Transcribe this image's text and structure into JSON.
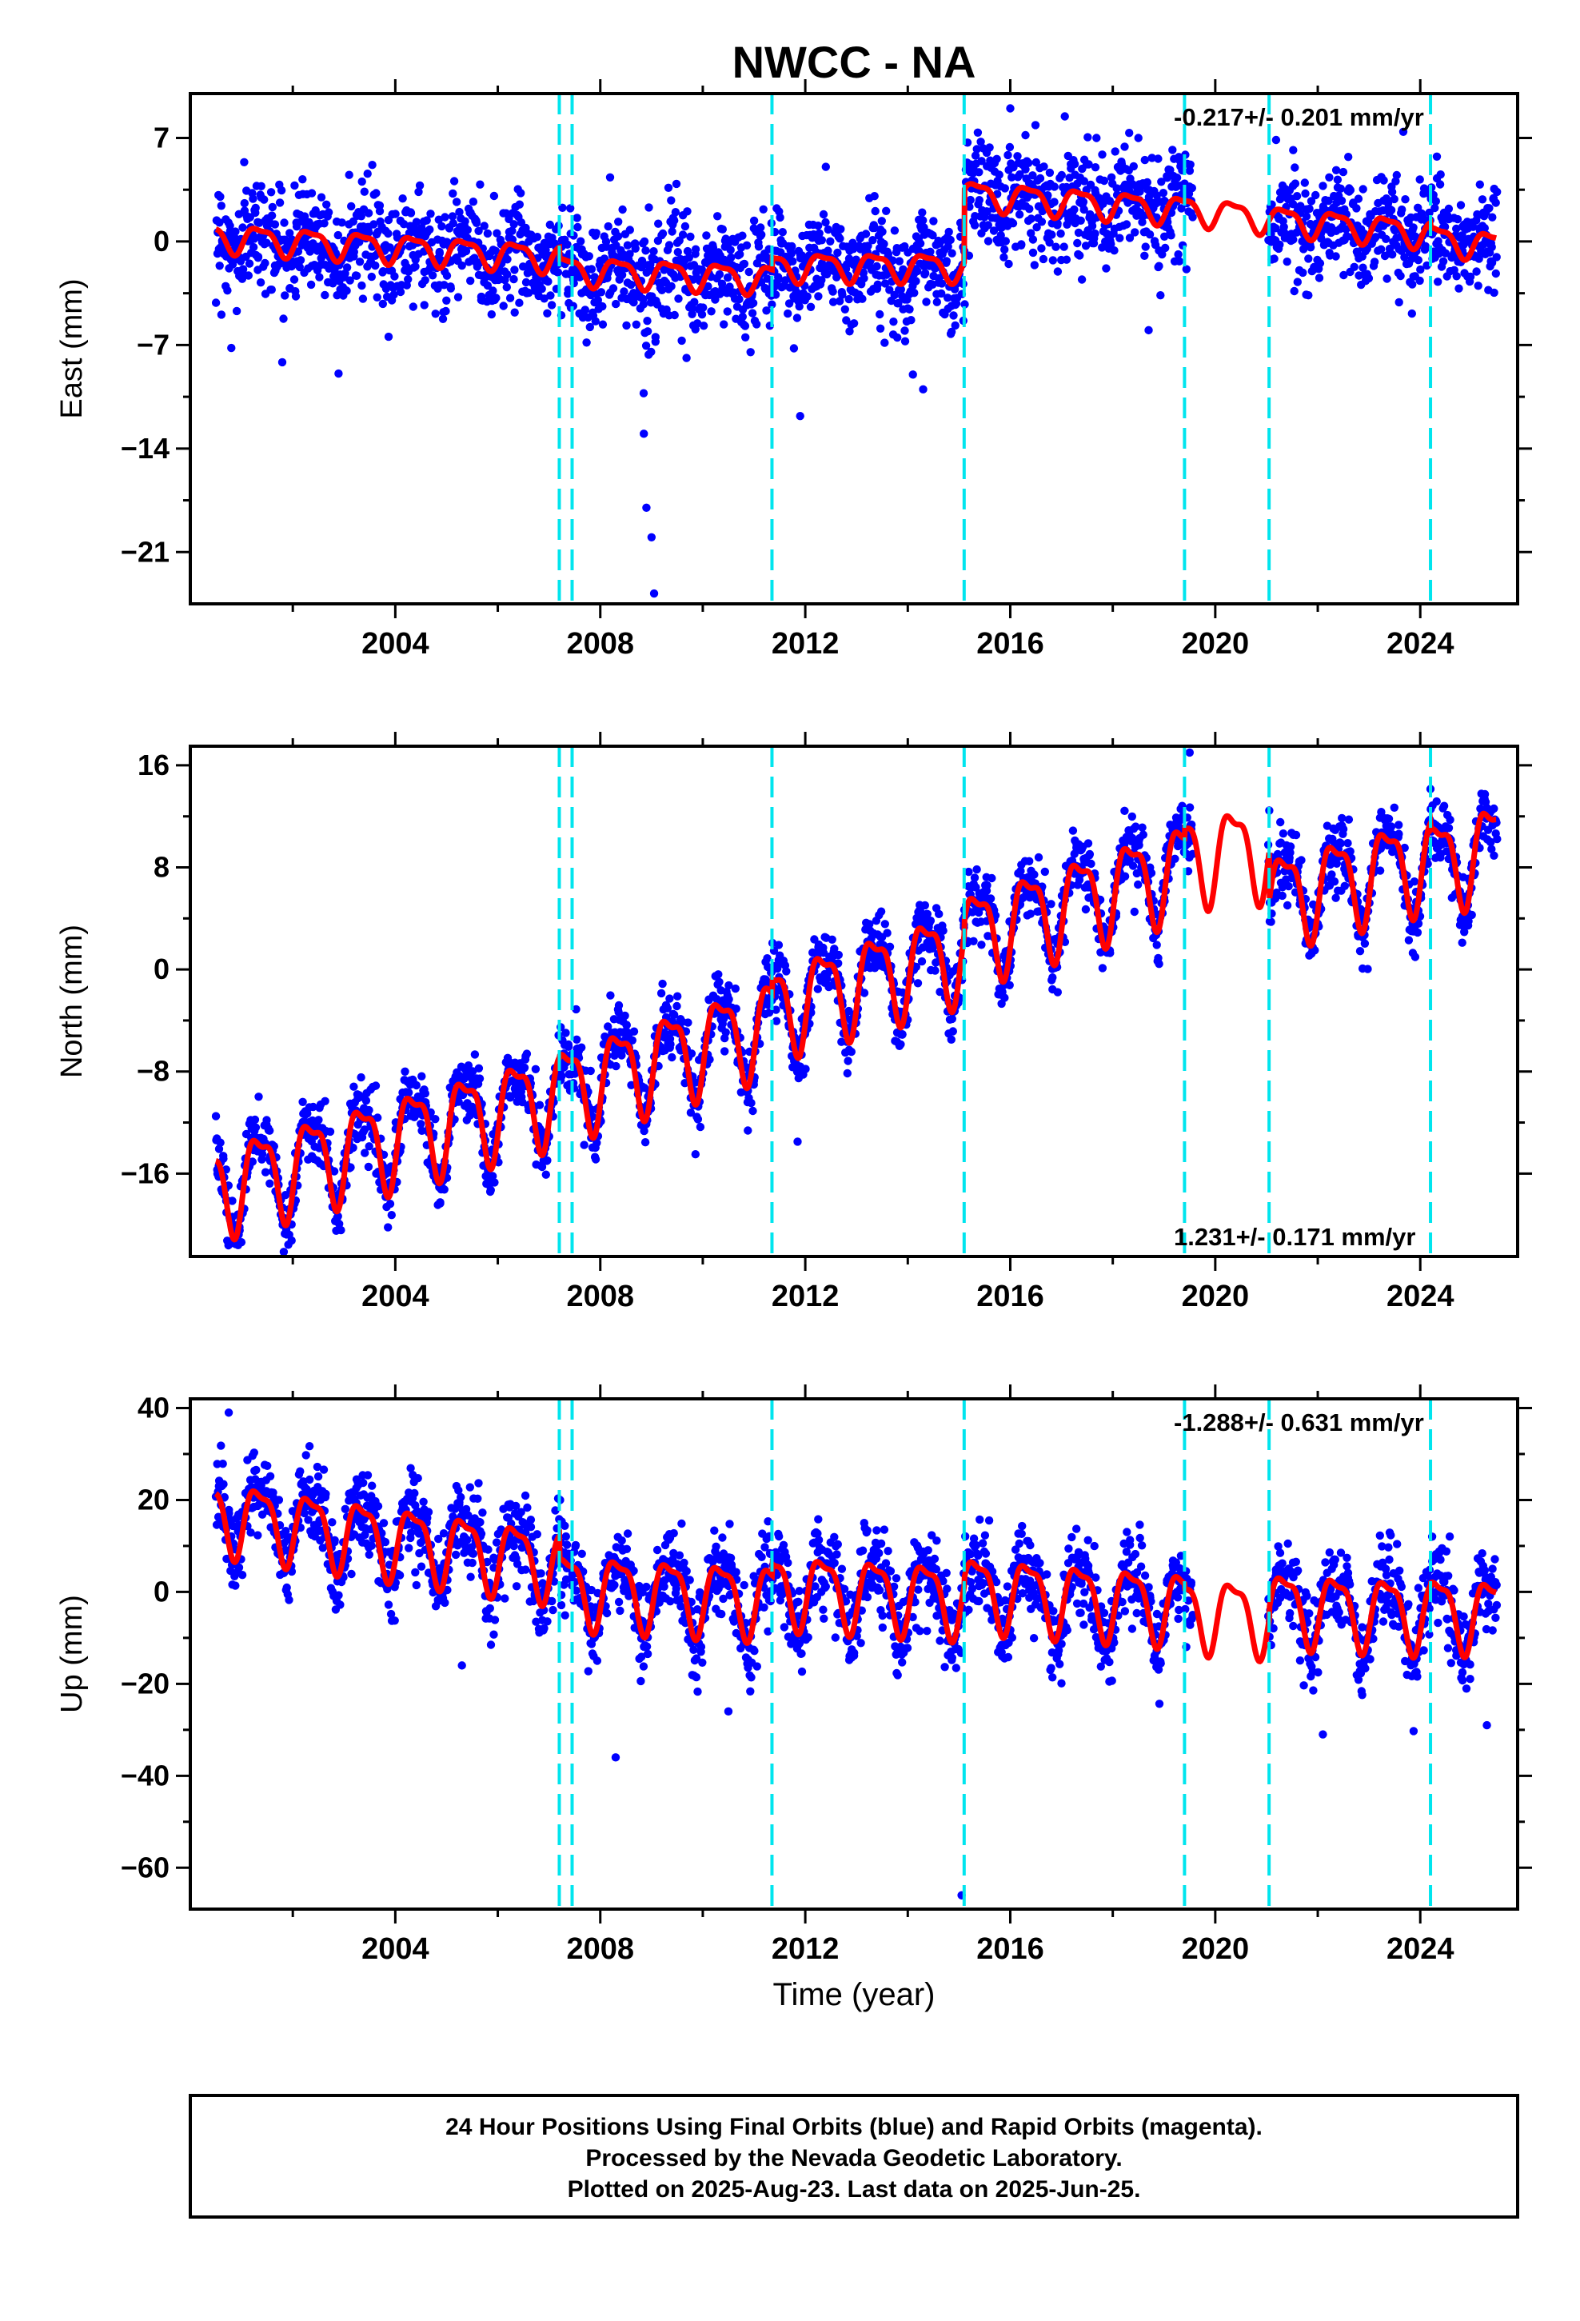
{
  "chart_data": {
    "type": "scatter",
    "title": "NWCC - NA",
    "xlabel": "Time (year)",
    "xlim": [
      2000.0,
      2025.9
    ],
    "x_ticks": [
      2004,
      2008,
      2012,
      2016,
      2020,
      2024
    ],
    "colors": {
      "data": "#0000ff",
      "model": "#ff0000",
      "offsets": "#00e5ee",
      "frame": "#000000"
    },
    "offset_epochs": [
      2007.2,
      2007.45,
      2011.35,
      2015.1,
      2019.4,
      2021.05,
      2024.2
    ],
    "data_span": [
      2000.5,
      2025.48
    ],
    "panels": [
      {
        "name": "east",
        "ylabel": "East (mm)",
        "ylim": [
          -24.5,
          10.0
        ],
        "y_ticks": [
          -21,
          -14,
          -7,
          0,
          7
        ],
        "annotation": "-0.217+/- 0.201 mm/yr",
        "annotation_pos": "top-right",
        "model": {
          "amp1": 0.9,
          "amp2": 0.3,
          "segments": [
            {
              "from": 2000.5,
              "to": 2007.2,
              "start": 0.3,
              "rate": -0.21
            },
            {
              "from": 2007.2,
              "to": 2011.35,
              "start": -1.9,
              "rate": -0.15
            },
            {
              "from": 2011.35,
              "to": 2015.1,
              "start": -1.7,
              "rate": 0.0
            },
            {
              "from": 2015.1,
              "to": 2019.4,
              "start": 3.2,
              "rate": -0.25
            },
            {
              "from": 2019.4,
              "to": 2021.05,
              "start": 2.2,
              "rate": -0.4
            },
            {
              "from": 2021.05,
              "to": 2024.2,
              "start": 1.5,
              "rate": -0.3
            },
            {
              "from": 2024.2,
              "to": 2025.48,
              "start": 0.2,
              "rate": -0.4
            }
          ]
        },
        "scatter_sd": 1.8,
        "gaps": [
          [
            2019.55,
            2021.0
          ]
        ],
        "outliers": [
          {
            "x": 2008.9,
            "y": -18.0
          },
          {
            "x": 2009.0,
            "y": -20.0
          },
          {
            "x": 2009.05,
            "y": -23.8
          },
          {
            "x": 2008.85,
            "y": -13.0
          },
          {
            "x": 2011.9,
            "y": -11.8
          },
          {
            "x": 2014.1,
            "y": -9.0
          },
          {
            "x": 2014.3,
            "y": -10.0
          },
          {
            "x": 2018.7,
            "y": -6.0
          },
          {
            "x": 2016.0,
            "y": 9.0
          },
          {
            "x": 2003.1,
            "y": 4.5
          },
          {
            "x": 2000.8,
            "y": -7.2
          }
        ]
      },
      {
        "name": "north",
        "ylabel": "North (mm)",
        "ylim": [
          -22.5,
          17.5
        ],
        "y_ticks": [
          -16,
          -8,
          0,
          8,
          16
        ],
        "annotation": "1.231+/- 0.171 mm/yr",
        "annotation_pos": "bottom-right",
        "model": {
          "amp1": 3.4,
          "amp2": 1.2,
          "segments": [
            {
              "from": 2000.5,
              "to": 2007.2,
              "start": -17.0,
              "rate": 1.1
            },
            {
              "from": 2007.2,
              "to": 2011.35,
              "start": -9.5,
              "rate": 1.3
            },
            {
              "from": 2011.35,
              "to": 2015.1,
              "start": -3.0,
              "rate": 1.2
            },
            {
              "from": 2015.1,
              "to": 2019.4,
              "start": 2.6,
              "rate": 1.3
            },
            {
              "from": 2019.4,
              "to": 2021.05,
              "start": 9.0,
              "rate": 0.3
            },
            {
              "from": 2021.05,
              "to": 2024.2,
              "start": 5.6,
              "rate": 1.0
            },
            {
              "from": 2024.2,
              "to": 2025.48,
              "start": 8.2,
              "rate": 1.2
            }
          ]
        },
        "scatter_sd": 1.3,
        "gaps": [
          [
            2019.55,
            2021.0
          ]
        ],
        "outliers": [
          {
            "x": 2011.85,
            "y": -13.5
          },
          {
            "x": 2014.85,
            "y": -5.5
          },
          {
            "x": 2019.5,
            "y": 17.0
          },
          {
            "x": 2000.5,
            "y": -11.5
          }
        ]
      },
      {
        "name": "up",
        "ylabel": "Up (mm)",
        "ylim": [
          -69.0,
          42.0
        ],
        "y_ticks": [
          -60,
          -40,
          -20,
          0,
          20,
          40
        ],
        "annotation": "-1.288+/- 0.631 mm/yr",
        "annotation_pos": "top-right",
        "model": {
          "amp1": 7.5,
          "amp2": 2.5,
          "segments": [
            {
              "from": 2000.5,
              "to": 2007.2,
              "start": 17.0,
              "rate": -1.6
            },
            {
              "from": 2007.2,
              "to": 2011.35,
              "start": 1.0,
              "rate": -0.6
            },
            {
              "from": 2011.35,
              "to": 2015.1,
              "start": 1.0,
              "rate": -0.6
            },
            {
              "from": 2015.1,
              "to": 2019.4,
              "start": 0.5,
              "rate": -0.8
            },
            {
              "from": 2019.4,
              "to": 2021.05,
              "start": -4.0,
              "rate": -0.8
            },
            {
              "from": 2021.05,
              "to": 2024.2,
              "start": -3.0,
              "rate": -0.5
            },
            {
              "from": 2024.2,
              "to": 2025.48,
              "start": -4.0,
              "rate": -0.5
            }
          ]
        },
        "scatter_sd": 4.5,
        "gaps": [
          [
            2019.55,
            2021.0
          ]
        ],
        "outliers": [
          {
            "x": 2015.05,
            "y": -66.0
          },
          {
            "x": 2008.3,
            "y": -36.0
          },
          {
            "x": 2010.5,
            "y": -26.0
          },
          {
            "x": 2022.1,
            "y": -31.0
          },
          {
            "x": 2000.75,
            "y": 39.0
          },
          {
            "x": 2005.3,
            "y": -16.0
          },
          {
            "x": 2025.3,
            "y": -29.0
          }
        ]
      }
    ]
  },
  "footer": {
    "line1": "24 Hour Positions Using Final Orbits (blue) and Rapid Orbits (magenta).",
    "line2": "Processed by the Nevada Geodetic Laboratory.",
    "line3": "Plotted on 2025-Aug-23. Last data on 2025-Jun-25."
  }
}
